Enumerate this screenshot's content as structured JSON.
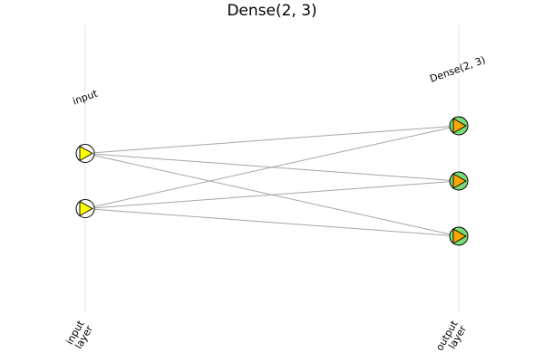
{
  "title": "Dense(2, 3)",
  "layers": [
    {
      "label": "input",
      "tick_lines": [
        "input",
        "layer"
      ],
      "neurons": 2,
      "node_fill": "#ffffff",
      "marker_fill": "#ffff00"
    },
    {
      "label": "Dense(2, 3)",
      "tick_lines": [
        "output",
        "layer"
      ],
      "neurons": 3,
      "node_fill": "#77dd77",
      "marker_fill": "#ffa500"
    }
  ],
  "connections": "fully-connected",
  "colors": {
    "edge": "#a6a6a6",
    "grid": "#e6e6e6",
    "outline": "#000000"
  }
}
